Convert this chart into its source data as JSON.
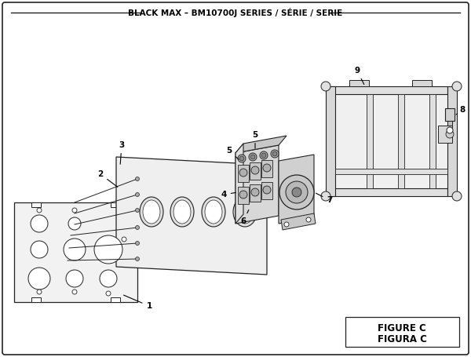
{
  "title": "BLACK MAX – BM10700J SERIES / SÉRIE / SERIE",
  "figure_label": "FIGURE C",
  "figura_label": "FIGURA C",
  "bg_color": "#ffffff",
  "line_color": "#222222",
  "light_gray": "#e8e8e8",
  "mid_gray": "#d0d0d0",
  "dark_gray": "#b0b0b0",
  "figsize": [
    6.0,
    4.55
  ],
  "dpi": 100
}
